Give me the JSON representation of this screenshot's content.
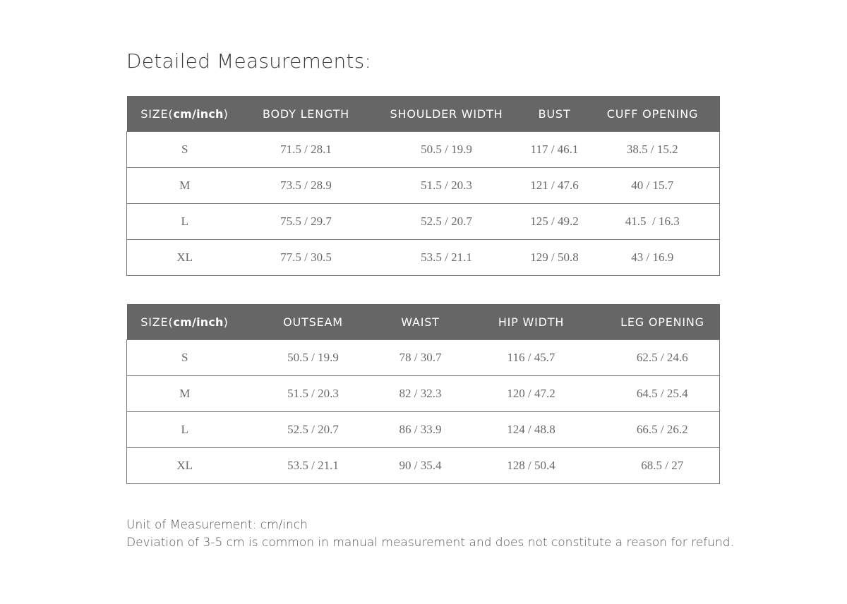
{
  "title": "Detailed Measurements:",
  "size_header": {
    "prefix": "SIZE(",
    "unit": "cm/inch",
    "suffix": ")"
  },
  "top_table": {
    "columns": [
      "BODY LENGTH",
      "SHOULDER WIDTH",
      "BUST",
      "CUFF OPENING"
    ],
    "rows": [
      [
        "S",
        "71.5 / 28.1",
        "50.5 / 19.9",
        "117 / 46.1",
        "38.5 / 15.2"
      ],
      [
        "M",
        "73.5 / 28.9",
        "51.5 / 20.3",
        "121 / 47.6",
        "40 / 15.7"
      ],
      [
        "L",
        "75.5 / 29.7",
        "52.5 / 20.7",
        "125 / 49.2",
        "41.5  / 16.3"
      ],
      [
        "XL",
        "77.5 / 30.5",
        "53.5 / 21.1",
        "129 / 50.8",
        "43 / 16.9"
      ]
    ]
  },
  "bottom_table": {
    "columns": [
      "OUTSEAM",
      "WAIST",
      "HIP WIDTH",
      "LEG OPENING"
    ],
    "rows": [
      [
        "S",
        "50.5 / 19.9",
        "78 / 30.7",
        "116 / 45.7",
        "62.5 / 24.6"
      ],
      [
        "M",
        "51.5 / 20.3",
        "82 / 32.3",
        "120 / 47.2",
        "64.5 / 25.4"
      ],
      [
        "L",
        "52.5 / 20.7",
        "86 / 33.9",
        "124 / 48.8",
        "66.5 / 26.2"
      ],
      [
        "XL",
        "53.5 / 21.1",
        "90 / 35.4",
        "128 / 50.4",
        "68.5 / 27"
      ]
    ]
  },
  "footer": {
    "unit_note": "Unit of Measurement: cm/inch",
    "deviation_note": "Deviation of 3-5 cm is common in manual measurement and does not constitute a reason for refund."
  },
  "colors": {
    "header_bg": "#666666",
    "header_text": "#ffffff",
    "cell_text": "#6a6a6a"
  }
}
